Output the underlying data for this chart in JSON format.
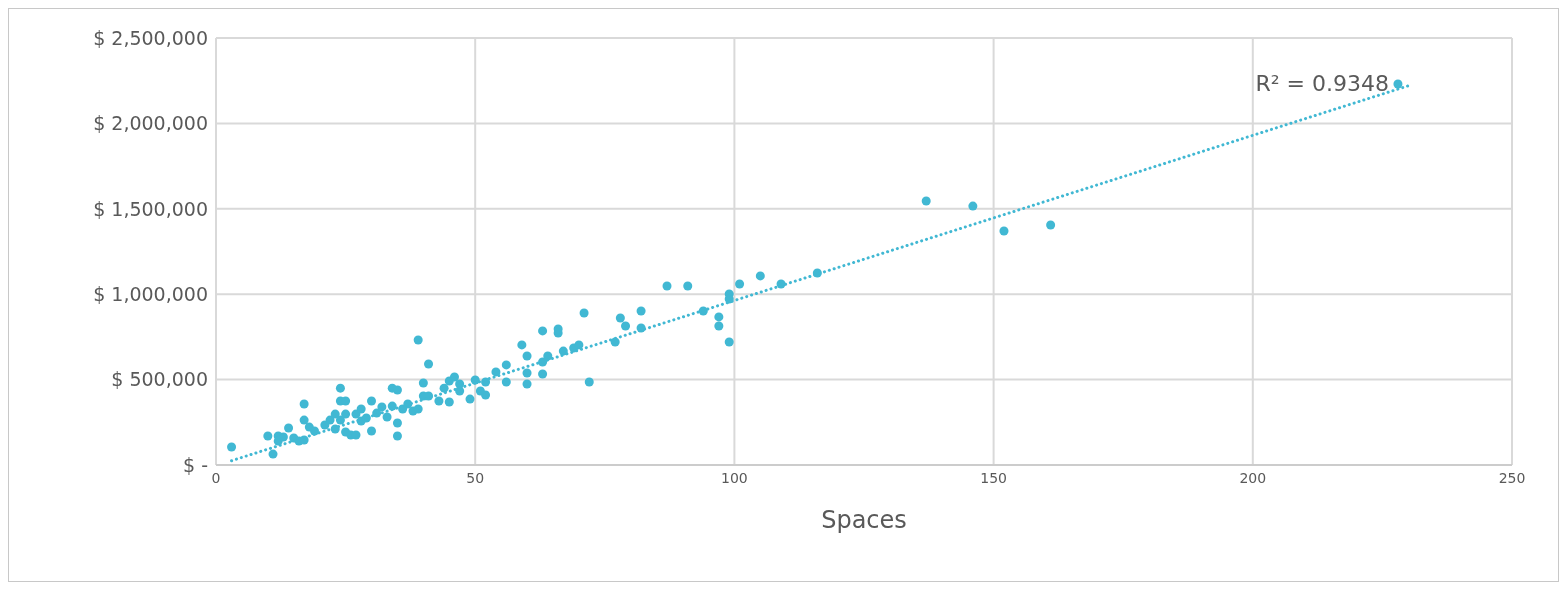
{
  "chart_data": {
    "type": "scatter",
    "xlabel": "Spaces",
    "grid": true,
    "marker": "circle",
    "xlim": [
      0,
      250
    ],
    "xticks": [
      0,
      50,
      100,
      150,
      200,
      250
    ],
    "ylim": [
      0,
      2500000
    ],
    "yticks": [
      {
        "value": 0,
        "label": "$ -"
      },
      {
        "value": 500000,
        "label": "$ 500,000"
      },
      {
        "value": 1000000,
        "label": "$ 1,000,000"
      },
      {
        "value": 1500000,
        "label": "$ 1,500,000"
      },
      {
        "value": 2000000,
        "label": "$ 2,000,000"
      },
      {
        "value": 2500000,
        "label": "$ 2,500,000"
      }
    ],
    "annotations": [
      "R² = 0.9348"
    ],
    "series": [
      {
        "type": "scatter",
        "color": "#41b8d3",
        "x": [
          3,
          10,
          11,
          12,
          12,
          13,
          14,
          15,
          16,
          17,
          17,
          17,
          18,
          19,
          21,
          22,
          23,
          23,
          24,
          24,
          24,
          25,
          25,
          25,
          26,
          27,
          27,
          28,
          28,
          29,
          30,
          30,
          31,
          32,
          33,
          34,
          34,
          35,
          35,
          35,
          36,
          37,
          38,
          39,
          39,
          40,
          40,
          41,
          41,
          43,
          44,
          45,
          45,
          47,
          46,
          47,
          49,
          50,
          51,
          52,
          52,
          54,
          56,
          56,
          59,
          60,
          60,
          60,
          63,
          63,
          63,
          64,
          66,
          66,
          67,
          69,
          70,
          71,
          72,
          77,
          78,
          79,
          82,
          82,
          87,
          91,
          94,
          97,
          97,
          99,
          99,
          99,
          101,
          105,
          109,
          116,
          137,
          146,
          152,
          161,
          228
        ],
        "values": [
          105000,
          170000,
          64000,
          170000,
          140000,
          164000,
          217000,
          158000,
          140000,
          357000,
          263000,
          146000,
          222000,
          199000,
          234000,
          263000,
          298000,
          211000,
          450000,
          375000,
          263000,
          193000,
          375000,
          298000,
          176000,
          176000,
          298000,
          257000,
          328000,
          275000,
          375000,
          199000,
          304000,
          340000,
          281000,
          345000,
          450000,
          170000,
          246000,
          439000,
          328000,
          357000,
          316000,
          732000,
          328000,
          480000,
          404000,
          591000,
          404000,
          375000,
          450000,
          369000,
          492000,
          433000,
          515000,
          474000,
          386000,
          498000,
          433000,
          486000,
          410000,
          545000,
          586000,
          486000,
          703000,
          638000,
          474000,
          539000,
          785000,
          533000,
          603000,
          638000,
          796000,
          773000,
          667000,
          685000,
          703000,
          890000,
          486000,
          720000,
          861000,
          814000,
          902000,
          802000,
          1048000,
          1048000,
          902000,
          867000,
          814000,
          1001000,
          972000,
          720000,
          1060000,
          1107000,
          1060000,
          1124000,
          1546000,
          1516000,
          1370000,
          1405000,
          2231000
        ]
      },
      {
        "type": "line",
        "color": "#41b8d3",
        "line_style": "dotted",
        "marker": "none",
        "x": [
          3,
          230
        ],
        "values": [
          25000,
          2220000
        ]
      }
    ]
  }
}
